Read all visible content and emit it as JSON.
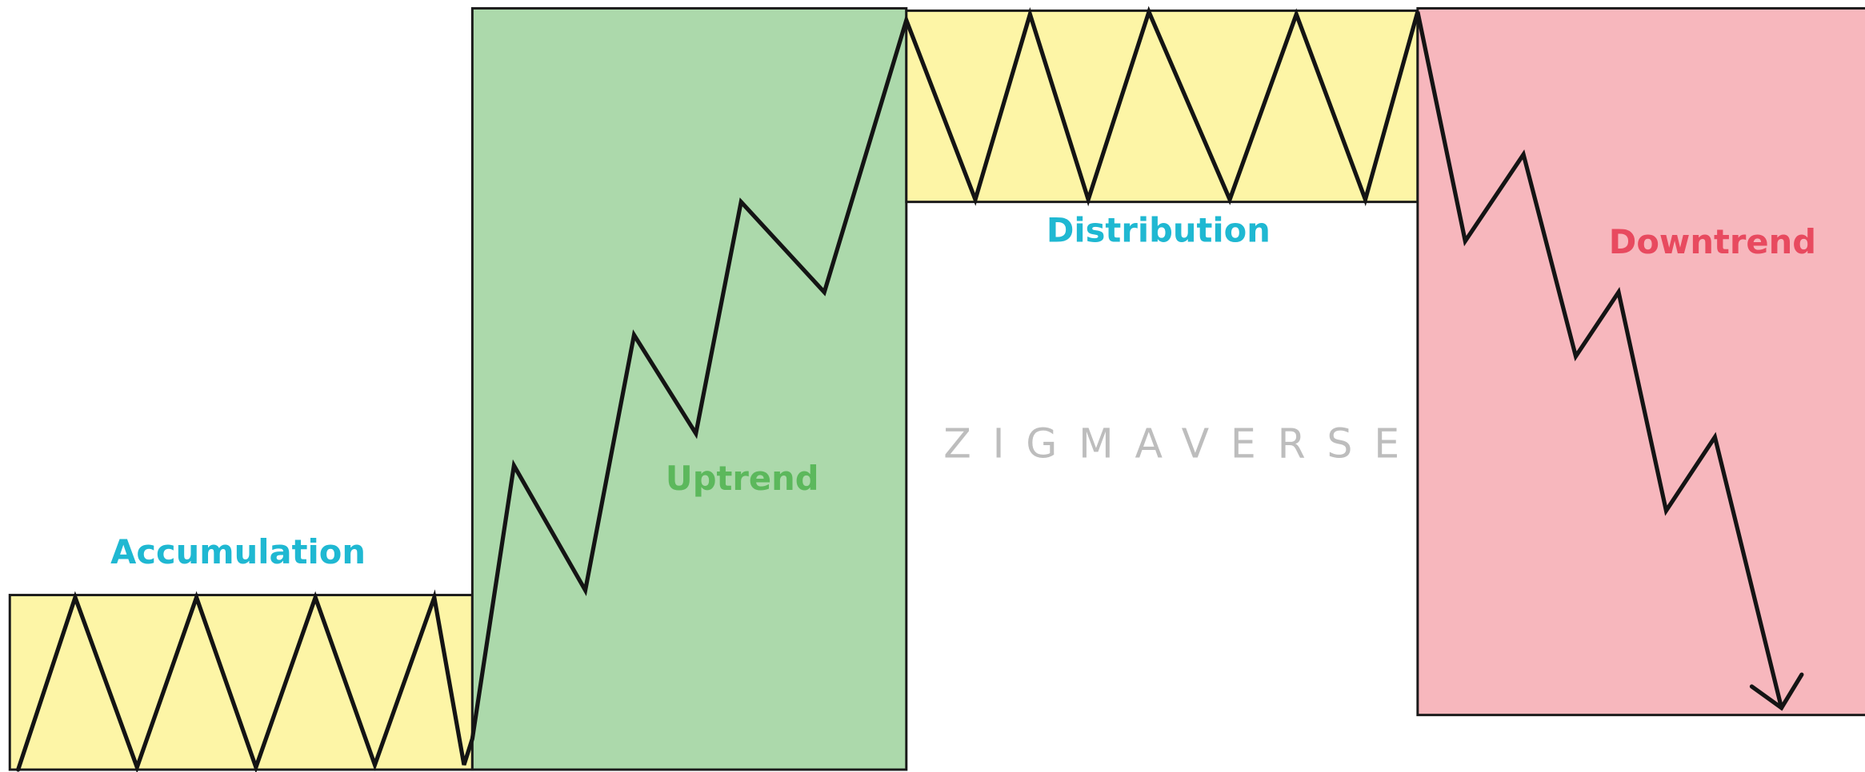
{
  "labels": {
    "accumulation": "Accumulation",
    "uptrend": "Uptrend",
    "distribution": "Distribution",
    "downtrend": "Downtrend"
  },
  "watermark": "ZIGMAVERSE"
}
